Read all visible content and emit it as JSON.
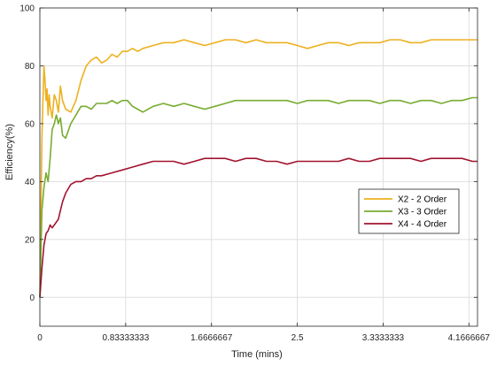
{
  "chart_data": {
    "type": "line",
    "title": "",
    "xlabel": "Time (mins)",
    "ylabel": "Efficiency(%)",
    "xlim": [
      0,
      4.25
    ],
    "ylim": [
      -10,
      100
    ],
    "x_ticks": [
      0,
      0.83333333,
      1.6666667,
      2.5,
      3.3333333,
      4.1666667
    ],
    "x_tick_labels": [
      "0",
      "0.83333333",
      "1.6666667",
      "2.5",
      "3.3333333",
      "4.1666667"
    ],
    "y_ticks": [
      0,
      20,
      40,
      60,
      80,
      100
    ],
    "y_tick_labels": [
      "0",
      "20",
      "40",
      "60",
      "80",
      "100"
    ],
    "grid": true,
    "legend_position": "center-right",
    "series": [
      {
        "name": "X2 - 2 Order",
        "color": "#EDB120",
        "x": [
          0,
          0.02,
          0.04,
          0.05,
          0.06,
          0.07,
          0.08,
          0.09,
          0.1,
          0.12,
          0.14,
          0.16,
          0.18,
          0.2,
          0.22,
          0.25,
          0.3,
          0.35,
          0.4,
          0.45,
          0.5,
          0.55,
          0.6,
          0.65,
          0.7,
          0.75,
          0.8,
          0.85,
          0.9,
          0.95,
          1.0,
          1.1,
          1.2,
          1.3,
          1.4,
          1.5,
          1.6,
          1.7,
          1.8,
          1.9,
          2.0,
          2.1,
          2.2,
          2.3,
          2.4,
          2.5,
          2.6,
          2.7,
          2.8,
          2.9,
          3.0,
          3.1,
          3.2,
          3.3,
          3.4,
          3.5,
          3.6,
          3.7,
          3.8,
          3.9,
          4.0,
          4.1,
          4.2,
          4.25
        ],
        "values": [
          0,
          55,
          80,
          75,
          68,
          72,
          63,
          70,
          66,
          62,
          70,
          68,
          64,
          73,
          68,
          65,
          64,
          68,
          75,
          80,
          82,
          83,
          81,
          82,
          84,
          83,
          85,
          85,
          86,
          85,
          86,
          87,
          88,
          88,
          89,
          88,
          87,
          88,
          89,
          89,
          88,
          89,
          88,
          88,
          88,
          87,
          86,
          87,
          88,
          88,
          87,
          88,
          88,
          88,
          89,
          89,
          88,
          88,
          89,
          89,
          89,
          89,
          89,
          89
        ]
      },
      {
        "name": "X3 - 3 Order",
        "color": "#77AC30",
        "x": [
          0,
          0.02,
          0.04,
          0.06,
          0.08,
          0.1,
          0.12,
          0.14,
          0.16,
          0.18,
          0.2,
          0.22,
          0.25,
          0.3,
          0.35,
          0.4,
          0.45,
          0.5,
          0.55,
          0.6,
          0.65,
          0.7,
          0.75,
          0.8,
          0.85,
          0.9,
          0.95,
          1.0,
          1.1,
          1.2,
          1.3,
          1.4,
          1.5,
          1.6,
          1.7,
          1.8,
          1.9,
          2.0,
          2.1,
          2.2,
          2.3,
          2.4,
          2.5,
          2.6,
          2.7,
          2.8,
          2.9,
          3.0,
          3.1,
          3.2,
          3.3,
          3.4,
          3.5,
          3.6,
          3.7,
          3.8,
          3.9,
          4.0,
          4.1,
          4.2,
          4.25
        ],
        "values": [
          0,
          30,
          38,
          43,
          40,
          48,
          58,
          60,
          63,
          60,
          62,
          56,
          55,
          60,
          63,
          66,
          66,
          65,
          67,
          67,
          67,
          68,
          67,
          68,
          68,
          66,
          65,
          64,
          66,
          67,
          66,
          67,
          66,
          65,
          66,
          67,
          68,
          68,
          68,
          68,
          68,
          68,
          67,
          68,
          68,
          68,
          67,
          68,
          68,
          68,
          67,
          68,
          68,
          67,
          68,
          68,
          67,
          68,
          68,
          69,
          69
        ]
      },
      {
        "name": "X4 - 4 Order",
        "color": "#A2142F",
        "x": [
          0,
          0.02,
          0.04,
          0.06,
          0.08,
          0.1,
          0.12,
          0.14,
          0.16,
          0.18,
          0.2,
          0.22,
          0.25,
          0.3,
          0.35,
          0.4,
          0.45,
          0.5,
          0.55,
          0.6,
          0.7,
          0.8,
          0.9,
          1.0,
          1.1,
          1.2,
          1.3,
          1.4,
          1.5,
          1.6,
          1.7,
          1.8,
          1.9,
          2.0,
          2.1,
          2.2,
          2.3,
          2.4,
          2.5,
          2.6,
          2.7,
          2.8,
          2.9,
          3.0,
          3.1,
          3.2,
          3.3,
          3.4,
          3.5,
          3.6,
          3.7,
          3.8,
          3.9,
          4.0,
          4.1,
          4.2,
          4.25
        ],
        "values": [
          0,
          10,
          18,
          22,
          23,
          25,
          24,
          25,
          26,
          27,
          30,
          33,
          36,
          39,
          40,
          40,
          41,
          41,
          42,
          42,
          43,
          44,
          45,
          46,
          47,
          47,
          47,
          46,
          47,
          48,
          48,
          48,
          47,
          48,
          48,
          47,
          47,
          46,
          47,
          47,
          47,
          47,
          47,
          48,
          47,
          47,
          48,
          48,
          48,
          48,
          47,
          48,
          48,
          48,
          48,
          47,
          47
        ]
      }
    ]
  }
}
